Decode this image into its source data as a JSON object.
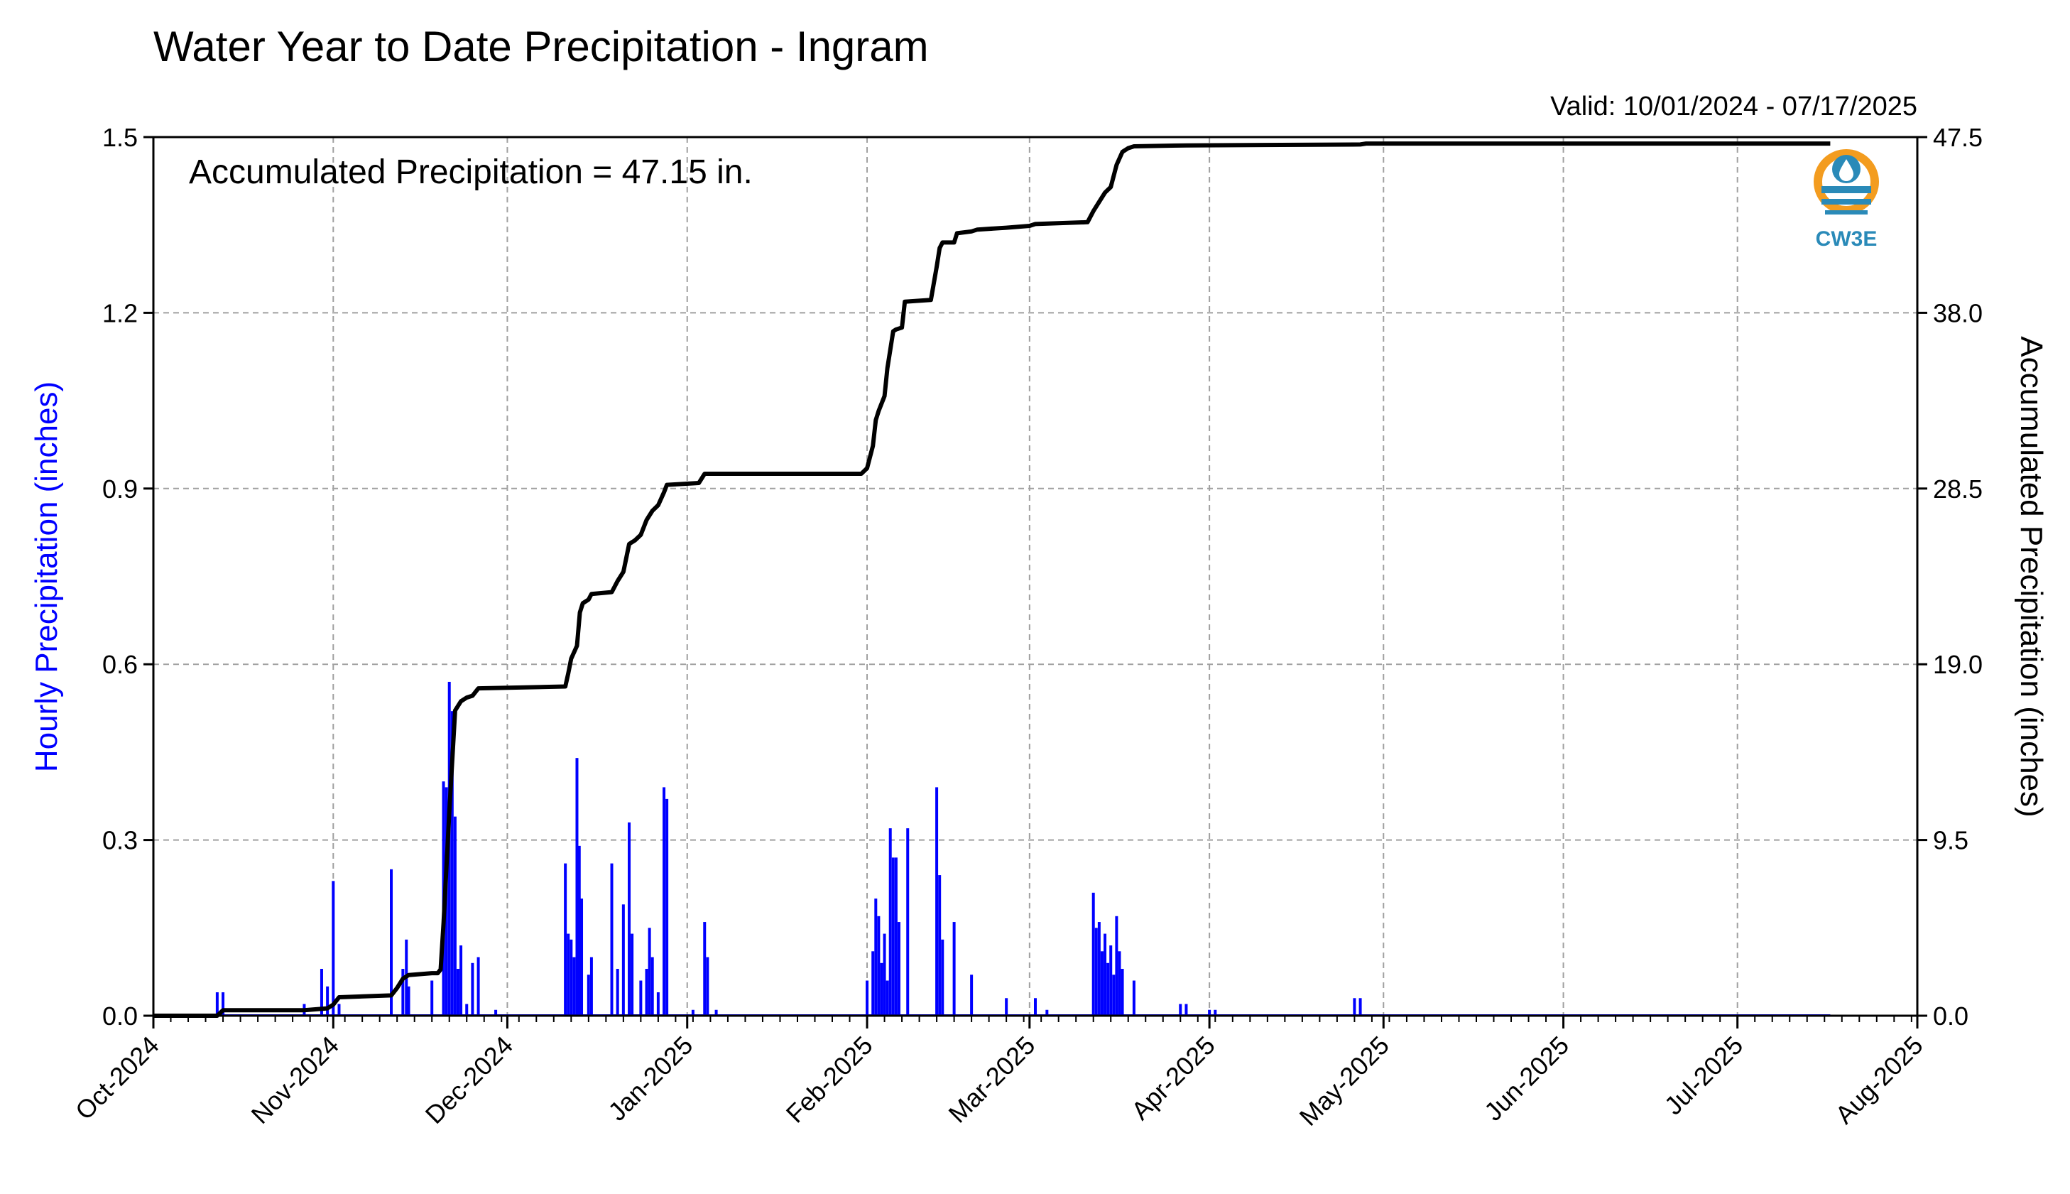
{
  "chart_data": {
    "type": "bar+line",
    "title": "Water Year to Date Precipitation - Ingram",
    "valid_label": "Valid: 10/01/2024 - 07/17/2025",
    "annotation": "Accumulated Precipitation = 47.15 in.",
    "left_ylabel": "Hourly Precipitation (inches)",
    "right_ylabel": "Accumulated Precipitation (inches)",
    "logo_text": "CW3E",
    "xlim": [
      "2024-10-01",
      "2025-08-01"
    ],
    "x_ticks": [
      {
        "date": "2024-10-01",
        "label": "Oct-2024"
      },
      {
        "date": "2024-11-01",
        "label": "Nov-2024"
      },
      {
        "date": "2024-12-01",
        "label": "Dec-2024"
      },
      {
        "date": "2025-01-01",
        "label": "Jan-2025"
      },
      {
        "date": "2025-02-01",
        "label": "Feb-2025"
      },
      {
        "date": "2025-03-01",
        "label": "Mar-2025"
      },
      {
        "date": "2025-04-01",
        "label": "Apr-2025"
      },
      {
        "date": "2025-05-01",
        "label": "May-2025"
      },
      {
        "date": "2025-06-01",
        "label": "Jun-2025"
      },
      {
        "date": "2025-07-01",
        "label": "Jul-2025"
      },
      {
        "date": "2025-08-01",
        "label": "Aug-2025"
      }
    ],
    "left_ylim": [
      0,
      1.5
    ],
    "left_ticks": [
      "0.0",
      "0.3",
      "0.6",
      "0.9",
      "1.2",
      "1.5"
    ],
    "right_ylim": [
      0,
      47.5
    ],
    "right_ticks": [
      "0.0",
      "9.5",
      "19.0",
      "28.5",
      "38.0",
      "47.5"
    ],
    "grid": true,
    "colors": {
      "bars": "#0000ff",
      "line": "#000000",
      "grid": "#a0a0a0",
      "logo_orange": "#f39c1f",
      "logo_blue": "#2a8ab8"
    },
    "hourly_precip": [
      {
        "date": "2024-10-12",
        "value": 0.04
      },
      {
        "date": "2024-10-13",
        "value": 0.04
      },
      {
        "date": "2024-10-27",
        "value": 0.02
      },
      {
        "date": "2024-10-30",
        "value": 0.08
      },
      {
        "date": "2024-10-31",
        "value": 0.05
      },
      {
        "date": "2024-11-01",
        "value": 0.23
      },
      {
        "date": "2024-11-02",
        "value": 0.02
      },
      {
        "date": "2024-11-11",
        "value": 0.25
      },
      {
        "date": "2024-11-13",
        "value": 0.08
      },
      {
        "date": "2024-11-13.6",
        "value": 0.13
      },
      {
        "date": "2024-11-14",
        "value": 0.05
      },
      {
        "date": "2024-11-18",
        "value": 0.06
      },
      {
        "date": "2024-11-20",
        "value": 0.4
      },
      {
        "date": "2024-11-20.5",
        "value": 0.39
      },
      {
        "date": "2024-11-21",
        "value": 0.57
      },
      {
        "date": "2024-11-21.5",
        "value": 0.52
      },
      {
        "date": "2024-11-22",
        "value": 0.34
      },
      {
        "date": "2024-11-22.5",
        "value": 0.08
      },
      {
        "date": "2024-11-23",
        "value": 0.12
      },
      {
        "date": "2024-11-24",
        "value": 0.02
      },
      {
        "date": "2024-11-25",
        "value": 0.09
      },
      {
        "date": "2024-11-26",
        "value": 0.1
      },
      {
        "date": "2024-11-29",
        "value": 0.01
      },
      {
        "date": "2024-12-11",
        "value": 0.26
      },
      {
        "date": "2024-12-11.5",
        "value": 0.14
      },
      {
        "date": "2024-12-12",
        "value": 0.13
      },
      {
        "date": "2024-12-12.5",
        "value": 0.1
      },
      {
        "date": "2024-12-13",
        "value": 0.44
      },
      {
        "date": "2024-12-13.4",
        "value": 0.29
      },
      {
        "date": "2024-12-13.8",
        "value": 0.2
      },
      {
        "date": "2024-12-15",
        "value": 0.07
      },
      {
        "date": "2024-12-15.5",
        "value": 0.1
      },
      {
        "date": "2024-12-19",
        "value": 0.26
      },
      {
        "date": "2024-12-20",
        "value": 0.08
      },
      {
        "date": "2024-12-21",
        "value": 0.19
      },
      {
        "date": "2024-12-22",
        "value": 0.33
      },
      {
        "date": "2024-12-22.5",
        "value": 0.14
      },
      {
        "date": "2024-12-24",
        "value": 0.06
      },
      {
        "date": "2024-12-25",
        "value": 0.08
      },
      {
        "date": "2024-12-25.5",
        "value": 0.15
      },
      {
        "date": "2024-12-26",
        "value": 0.1
      },
      {
        "date": "2024-12-27",
        "value": 0.04
      },
      {
        "date": "2024-12-28",
        "value": 0.39
      },
      {
        "date": "2024-12-28.5",
        "value": 0.37
      },
      {
        "date": "2025-01-02",
        "value": 0.01
      },
      {
        "date": "2025-01-04",
        "value": 0.16
      },
      {
        "date": "2025-01-04.5",
        "value": 0.1
      },
      {
        "date": "2025-01-06",
        "value": 0.01
      },
      {
        "date": "2025-02-01",
        "value": 0.06
      },
      {
        "date": "2025-02-02",
        "value": 0.11
      },
      {
        "date": "2025-02-02.5",
        "value": 0.2
      },
      {
        "date": "2025-02-03",
        "value": 0.17
      },
      {
        "date": "2025-02-03.5",
        "value": 0.09
      },
      {
        "date": "2025-02-04",
        "value": 0.14
      },
      {
        "date": "2025-02-04.5",
        "value": 0.06
      },
      {
        "date": "2025-02-05",
        "value": 0.32
      },
      {
        "date": "2025-02-05.5",
        "value": 0.27
      },
      {
        "date": "2025-02-06",
        "value": 0.27
      },
      {
        "date": "2025-02-06.5",
        "value": 0.16
      },
      {
        "date": "2025-02-08",
        "value": 0.32
      },
      {
        "date": "2025-02-13",
        "value": 0.39
      },
      {
        "date": "2025-02-13.5",
        "value": 0.24
      },
      {
        "date": "2025-02-14",
        "value": 0.13
      },
      {
        "date": "2025-02-16",
        "value": 0.16
      },
      {
        "date": "2025-02-19",
        "value": 0.07
      },
      {
        "date": "2025-02-25",
        "value": 0.03
      },
      {
        "date": "2025-03-02",
        "value": 0.03
      },
      {
        "date": "2025-03-04",
        "value": 0.01
      },
      {
        "date": "2025-03-12",
        "value": 0.21
      },
      {
        "date": "2025-03-12.5",
        "value": 0.15
      },
      {
        "date": "2025-03-13",
        "value": 0.16
      },
      {
        "date": "2025-03-13.5",
        "value": 0.11
      },
      {
        "date": "2025-03-14",
        "value": 0.14
      },
      {
        "date": "2025-03-14.5",
        "value": 0.09
      },
      {
        "date": "2025-03-15",
        "value": 0.12
      },
      {
        "date": "2025-03-15.5",
        "value": 0.07
      },
      {
        "date": "2025-03-16",
        "value": 0.17
      },
      {
        "date": "2025-03-16.5",
        "value": 0.11
      },
      {
        "date": "2025-03-17",
        "value": 0.08
      },
      {
        "date": "2025-03-19",
        "value": 0.06
      },
      {
        "date": "2025-03-27",
        "value": 0.02
      },
      {
        "date": "2025-03-28",
        "value": 0.02
      },
      {
        "date": "2025-04-01",
        "value": 0.01
      },
      {
        "date": "2025-04-02",
        "value": 0.01
      },
      {
        "date": "2025-04-26",
        "value": 0.03
      },
      {
        "date": "2025-04-27",
        "value": 0.03
      }
    ],
    "accumulated": [
      {
        "date": "2024-10-01",
        "value": 0.0
      },
      {
        "date": "2024-10-12",
        "value": 0.0
      },
      {
        "date": "2024-10-13",
        "value": 0.3
      },
      {
        "date": "2024-10-27",
        "value": 0.3
      },
      {
        "date": "2024-10-31",
        "value": 0.4
      },
      {
        "date": "2024-11-01",
        "value": 0.6
      },
      {
        "date": "2024-11-02",
        "value": 1.0
      },
      {
        "date": "2024-11-11",
        "value": 1.1
      },
      {
        "date": "2024-11-12",
        "value": 1.5
      },
      {
        "date": "2024-11-13",
        "value": 2.0
      },
      {
        "date": "2024-11-14",
        "value": 2.2
      },
      {
        "date": "2024-11-18",
        "value": 2.3
      },
      {
        "date": "2024-11-19",
        "value": 2.3
      },
      {
        "date": "2024-11-19.5",
        "value": 2.5
      },
      {
        "date": "2024-11-20",
        "value": 5.0
      },
      {
        "date": "2024-11-21",
        "value": 11.0
      },
      {
        "date": "2024-11-22",
        "value": 16.5
      },
      {
        "date": "2024-11-23",
        "value": 17.0
      },
      {
        "date": "2024-11-24",
        "value": 17.2
      },
      {
        "date": "2024-11-25",
        "value": 17.3
      },
      {
        "date": "2024-11-26",
        "value": 17.7
      },
      {
        "date": "2024-12-11",
        "value": 17.8
      },
      {
        "date": "2024-12-11.5",
        "value": 18.5
      },
      {
        "date": "2024-12-12",
        "value": 19.3
      },
      {
        "date": "2024-12-13",
        "value": 20.0
      },
      {
        "date": "2024-12-13.5",
        "value": 21.8
      },
      {
        "date": "2024-12-14",
        "value": 22.3
      },
      {
        "date": "2024-12-15",
        "value": 22.5
      },
      {
        "date": "2024-12-15.5",
        "value": 22.8
      },
      {
        "date": "2024-12-19",
        "value": 22.9
      },
      {
        "date": "2024-12-20",
        "value": 23.5
      },
      {
        "date": "2024-12-21",
        "value": 24.0
      },
      {
        "date": "2024-12-22",
        "value": 25.5
      },
      {
        "date": "2024-12-23",
        "value": 25.7
      },
      {
        "date": "2024-12-24",
        "value": 26.0
      },
      {
        "date": "2024-12-25",
        "value": 26.8
      },
      {
        "date": "2024-12-26",
        "value": 27.3
      },
      {
        "date": "2024-12-27",
        "value": 27.6
      },
      {
        "date": "2024-12-28",
        "value": 28.3
      },
      {
        "date": "2024-12-28.5",
        "value": 28.7
      },
      {
        "date": "2025-01-03",
        "value": 28.8
      },
      {
        "date": "2025-01-04",
        "value": 29.3
      },
      {
        "date": "2025-01-31",
        "value": 29.3
      },
      {
        "date": "2025-02-01",
        "value": 29.6
      },
      {
        "date": "2025-02-02",
        "value": 30.8
      },
      {
        "date": "2025-02-02.5",
        "value": 32.2
      },
      {
        "date": "2025-02-03",
        "value": 32.7
      },
      {
        "date": "2025-02-04",
        "value": 33.5
      },
      {
        "date": "2025-02-04.5",
        "value": 35.0
      },
      {
        "date": "2025-02-05",
        "value": 36.0
      },
      {
        "date": "2025-02-05.5",
        "value": 37.0
      },
      {
        "date": "2025-02-06",
        "value": 37.1
      },
      {
        "date": "2025-02-07",
        "value": 37.2
      },
      {
        "date": "2025-02-07.5",
        "value": 38.6
      },
      {
        "date": "2025-02-12",
        "value": 38.7
      },
      {
        "date": "2025-02-13",
        "value": 40.5
      },
      {
        "date": "2025-02-13.5",
        "value": 41.5
      },
      {
        "date": "2025-02-14",
        "value": 41.8
      },
      {
        "date": "2025-02-16",
        "value": 41.8
      },
      {
        "date": "2025-02-16.5",
        "value": 42.3
      },
      {
        "date": "2025-02-19",
        "value": 42.4
      },
      {
        "date": "2025-02-20",
        "value": 42.5
      },
      {
        "date": "2025-02-25",
        "value": 42.6
      },
      {
        "date": "2025-03-01",
        "value": 42.7
      },
      {
        "date": "2025-03-02",
        "value": 42.8
      },
      {
        "date": "2025-03-11",
        "value": 42.9
      },
      {
        "date": "2025-03-12",
        "value": 43.5
      },
      {
        "date": "2025-03-13",
        "value": 44.0
      },
      {
        "date": "2025-03-14",
        "value": 44.5
      },
      {
        "date": "2025-03-15",
        "value": 44.8
      },
      {
        "date": "2025-03-16",
        "value": 46.0
      },
      {
        "date": "2025-03-17",
        "value": 46.7
      },
      {
        "date": "2025-03-18",
        "value": 46.9
      },
      {
        "date": "2025-03-19",
        "value": 47.0
      },
      {
        "date": "2025-03-28",
        "value": 47.05
      },
      {
        "date": "2025-04-27",
        "value": 47.1
      },
      {
        "date": "2025-04-28",
        "value": 47.15
      },
      {
        "date": "2025-07-17",
        "value": 47.15
      }
    ]
  }
}
